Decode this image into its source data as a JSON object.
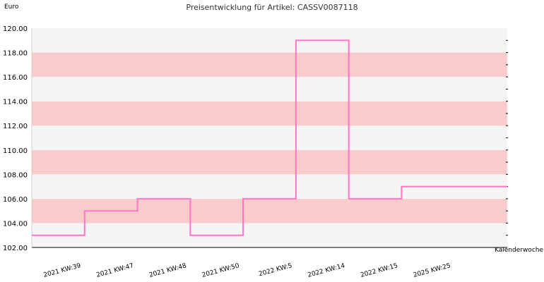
{
  "chart_data": {
    "type": "line",
    "title": "Preisentwicklung für Artikel: CASSV0087118",
    "ylabel": "Euro",
    "xlabel": "Kalenderwoche",
    "ylim": [
      102,
      120
    ],
    "ytick_step": 2,
    "yticks": [
      "102.00",
      "104.00",
      "106.00",
      "108.00",
      "110.00",
      "112.00",
      "114.00",
      "116.00",
      "118.00",
      "120.00"
    ],
    "categories": [
      "2021 KW:39",
      "2021 KW:47",
      "2021 KW:48",
      "2021 KW:50",
      "2022 KW:5",
      "2022 KW:14",
      "2022 KW:15",
      "2025 KW:25"
    ],
    "series": [
      {
        "values": [
          103,
          105,
          106,
          103,
          106,
          119,
          106,
          107
        ],
        "color": "#ff77c4"
      }
    ],
    "step": true,
    "bands": {
      "color_a": "#f9cccc",
      "color_b": "#f5f5f5"
    },
    "grid": false,
    "legend": "none"
  }
}
